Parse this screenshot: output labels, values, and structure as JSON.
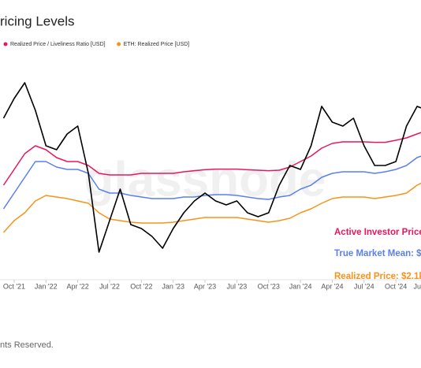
{
  "chart_data": {
    "type": "line",
    "title": "ricing Levels",
    "watermark": "glassnode",
    "footer": "nts Reserved.",
    "x": [
      "2021-09",
      "2021-10",
      "2021-11",
      "2021-12",
      "2022-01",
      "2022-02",
      "2022-03",
      "2022-04",
      "2022-05",
      "2022-06",
      "2022-07",
      "2022-08",
      "2022-09",
      "2022-10",
      "2022-11",
      "2022-12",
      "2023-01",
      "2023-02",
      "2023-03",
      "2023-04",
      "2023-05",
      "2023-06",
      "2023-07",
      "2023-08",
      "2023-09",
      "2023-10",
      "2023-11",
      "2023-12",
      "2024-01",
      "2024-02",
      "2024-03",
      "2024-04",
      "2024-05",
      "2024-06",
      "2024-07",
      "2024-08",
      "2024-09",
      "2024-10",
      "2024-11",
      "2024-12",
      "2025-01"
    ],
    "xticks": [
      {
        "value": "2021-10",
        "label": "Oct '21"
      },
      {
        "value": "2022-01",
        "label": "Jan '22"
      },
      {
        "value": "2022-04",
        "label": "Apr '22"
      },
      {
        "value": "2022-07",
        "label": "Jul '22"
      },
      {
        "value": "2022-10",
        "label": "Oct '22"
      },
      {
        "value": "2023-01",
        "label": "Jan '23"
      },
      {
        "value": "2023-04",
        "label": "Apr '23"
      },
      {
        "value": "2023-07",
        "label": "Jul '23"
      },
      {
        "value": "2023-10",
        "label": "Oct '23"
      },
      {
        "value": "2024-01",
        "label": "Jan '24"
      },
      {
        "value": "2024-04",
        "label": "Apr '24"
      },
      {
        "value": "2024-07",
        "label": "Jul '24"
      },
      {
        "value": "2024-10",
        "label": "Oct '24"
      },
      {
        "value": "2025-01",
        "label": "Ju"
      }
    ],
    "ylim": [
      0,
      4350
    ],
    "series": [
      {
        "color": "#000000",
        "values": [
          3300,
          3675,
          3975,
          3450,
          2775,
          2700,
          3000,
          3150,
          2250,
          750,
          1350,
          1950,
          1275,
          1200,
          1050,
          825,
          1200,
          1500,
          1725,
          1875,
          1725,
          1650,
          1725,
          1500,
          1425,
          1500,
          2025,
          2400,
          2325,
          2775,
          3525,
          3225,
          3150,
          3300,
          2775,
          2400,
          2400,
          2475,
          3150,
          3525,
          3450
        ]
      },
      {
        "name": "Realized Price / Liveliness Ratio [USD]",
        "color": "#e8175d",
        "values": [
          2025,
          2325,
          2625,
          2775,
          2700,
          2550,
          2475,
          2475,
          2400,
          2250,
          2220,
          2220,
          2220,
          2250,
          2250,
          2250,
          2250,
          2280,
          2300,
          2320,
          2330,
          2330,
          2330,
          2320,
          2310,
          2300,
          2310,
          2370,
          2475,
          2580,
          2730,
          2820,
          2850,
          2850,
          2850,
          2840,
          2840,
          2880,
          2925,
          3000,
          3075
        ]
      },
      {
        "color": "#5b7ff0",
        "values": [
          1575,
          1875,
          2175,
          2475,
          2475,
          2370,
          2325,
          2325,
          2250,
          1950,
          1875,
          1875,
          1830,
          1800,
          1770,
          1770,
          1770,
          1800,
          1800,
          1830,
          1845,
          1845,
          1830,
          1800,
          1770,
          1755,
          1800,
          1830,
          1950,
          2025,
          2175,
          2250,
          2280,
          2280,
          2280,
          2250,
          2280,
          2325,
          2400,
          2550,
          2625
        ]
      },
      {
        "name": "ETH: Realized Price [USD]",
        "color": "#f7931a",
        "values": [
          1125,
          1350,
          1500,
          1725,
          1830,
          1800,
          1770,
          1725,
          1680,
          1500,
          1380,
          1350,
          1320,
          1305,
          1305,
          1305,
          1320,
          1350,
          1380,
          1410,
          1410,
          1410,
          1410,
          1380,
          1350,
          1320,
          1350,
          1395,
          1500,
          1575,
          1680,
          1770,
          1800,
          1800,
          1800,
          1770,
          1800,
          1830,
          1875,
          2025,
          2130
        ]
      }
    ],
    "annotations": [
      {
        "text": "Active Investor Price",
        "color": "#e8175d"
      },
      {
        "text": "True Market Mean: $",
        "color": "#5b7ff0"
      },
      {
        "text": "Realized Price: $2.1k",
        "color": "#f7931a"
      }
    ]
  }
}
